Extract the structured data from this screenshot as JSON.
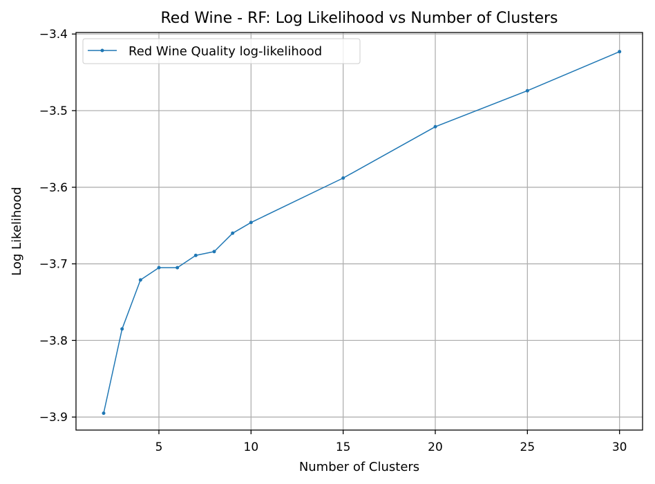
{
  "chart_data": {
    "type": "line",
    "title": "Red Wine - RF: Log Likelihood vs Number of Clusters",
    "xlabel": "Number of Clusters",
    "ylabel": "Log Likelihood",
    "xlim": [
      0.5,
      31.25
    ],
    "ylim": [
      -3.917,
      -3.398
    ],
    "xticks": [
      5,
      10,
      15,
      20,
      25,
      30
    ],
    "yticks": [
      -3.4,
      -3.5,
      -3.6,
      -3.7,
      -3.8,
      -3.9
    ],
    "ytick_labels": [
      "−3.4",
      "−3.5",
      "−3.6",
      "−3.7",
      "−3.8",
      "−3.9"
    ],
    "grid": true,
    "legend_position": "top-left",
    "series": [
      {
        "name": "Red Wine Quality log-likelihood",
        "color": "#1f77b4",
        "marker": "point",
        "x": [
          2,
          3,
          4,
          5,
          6,
          7,
          8,
          9,
          10,
          15,
          20,
          25,
          30
        ],
        "y": [
          -3.895,
          -3.785,
          -3.721,
          -3.705,
          -3.705,
          -3.689,
          -3.684,
          -3.66,
          -3.646,
          -3.588,
          -3.521,
          -3.474,
          -3.423
        ]
      }
    ]
  }
}
